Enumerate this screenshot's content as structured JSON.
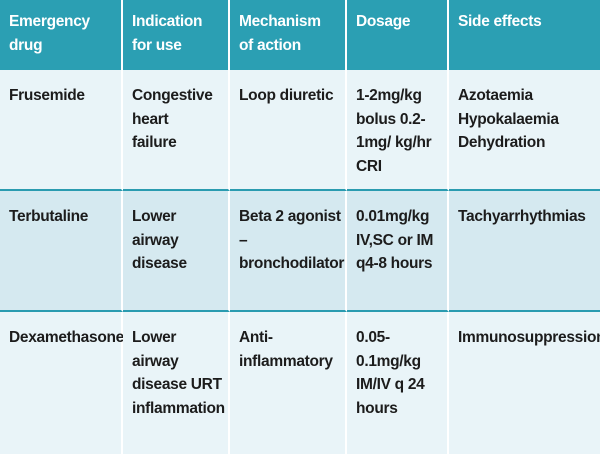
{
  "table": {
    "headers": [
      "Emergency drug",
      "Indication for use",
      "Mechanism of action",
      "Dosage",
      "Side effects"
    ],
    "rows": [
      {
        "drug": "Frusemide",
        "indication": "Congestive heart failure",
        "mechanism": "Loop diuretic",
        "dosage": "1-2mg/kg bolus 0.2-1mg/ kg/hr CRI",
        "side_effects": "Azotaemia Hypokalaemia Dehydration"
      },
      {
        "drug": "Terbutaline",
        "indication": "Lower airway disease",
        "mechanism": "Beta 2 agonist – bronchodilator",
        "dosage": "0.01mg/kg IV,SC or IM q4-8 hours",
        "side_effects": "Tachyarrhythmias"
      },
      {
        "drug": "Dexamethasone",
        "indication": "Lower airway disease URT inflammation",
        "mechanism": "Anti- inflammatory",
        "dosage": "0.05- 0.1mg/kg IM/IV q 24 hours",
        "side_effects": "Immunosuppression"
      }
    ]
  },
  "colors": {
    "header_bg": "#2b9fb3",
    "row_light": "#e9f4f8",
    "row_dark": "#d5e9f0",
    "divider": "#2a9bb0"
  }
}
